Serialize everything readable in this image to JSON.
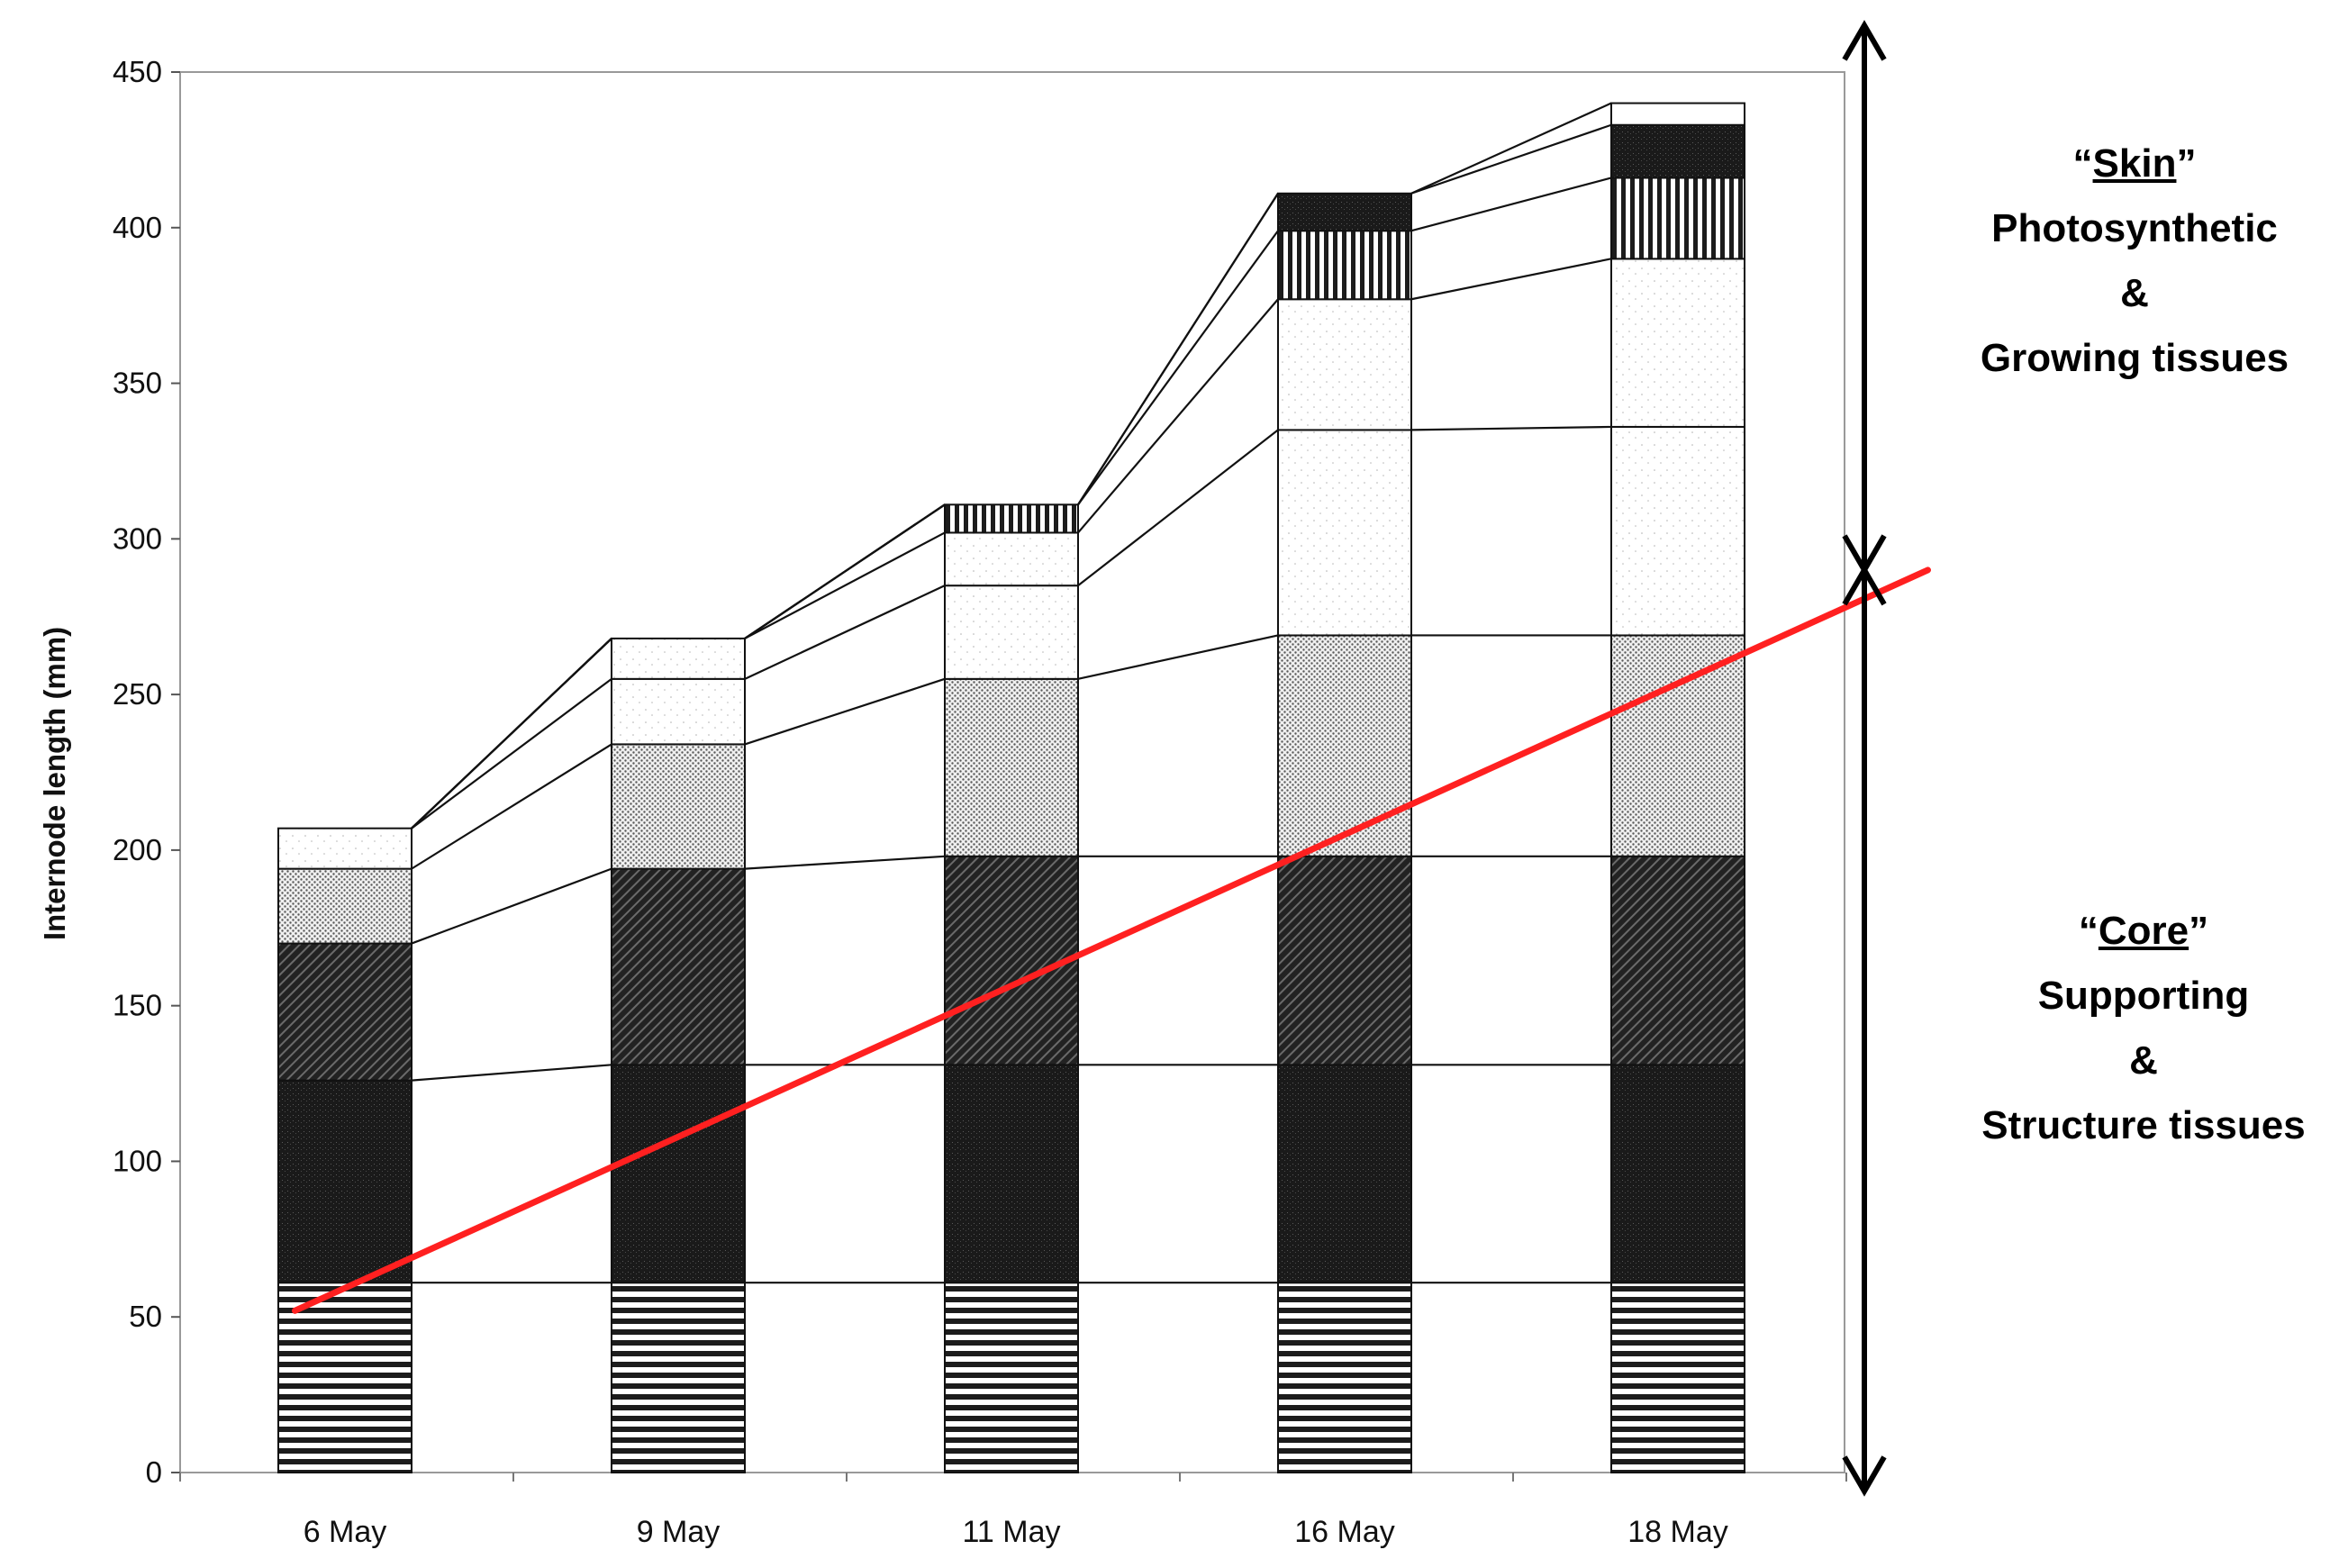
{
  "chart_data": {
    "type": "bar",
    "stacked": true,
    "ylabel": "Internode length (mm)",
    "xlabel": "",
    "ylim": [
      0,
      450
    ],
    "yticks": [
      0,
      50,
      100,
      150,
      200,
      250,
      300,
      350,
      400,
      450
    ],
    "categories": [
      "6 May",
      "9 May",
      "11 May",
      "16 May",
      "18 May"
    ],
    "segments": [
      {
        "pattern": "hlines",
        "values": [
          61,
          61,
          61,
          61,
          61
        ]
      },
      {
        "pattern": "dark",
        "values": [
          65,
          70,
          70,
          70,
          70
        ]
      },
      {
        "pattern": "hatch",
        "values": [
          44,
          63,
          67,
          67,
          67
        ]
      },
      {
        "pattern": "dotted",
        "values": [
          24,
          40,
          57,
          71,
          71
        ]
      },
      {
        "pattern": "sparse",
        "values": [
          13,
          21,
          30,
          66,
          67
        ]
      },
      {
        "pattern": "sparse",
        "values": [
          0,
          13,
          17,
          42,
          54
        ]
      },
      {
        "pattern": "vlines",
        "values": [
          0,
          0,
          9,
          22,
          26
        ]
      },
      {
        "pattern": "dark",
        "values": [
          0,
          0,
          0,
          12,
          17
        ]
      },
      {
        "pattern": "white",
        "values": [
          0,
          0,
          0,
          0,
          7
        ]
      }
    ],
    "trend_line": {
      "color": "#ff2020",
      "from": [
        -0.15,
        52
      ],
      "to": [
        4.75,
        290
      ]
    },
    "annotations": {
      "skin": {
        "label": "Skin",
        "lines": [
          "Photosynthetic",
          "&",
          "Growing tissues"
        ],
        "range": [
          290,
          465
        ]
      },
      "core": {
        "label": "Core",
        "lines": [
          "Supporting",
          "&",
          "Structure tissues"
        ],
        "range": [
          0,
          290
        ]
      }
    }
  }
}
